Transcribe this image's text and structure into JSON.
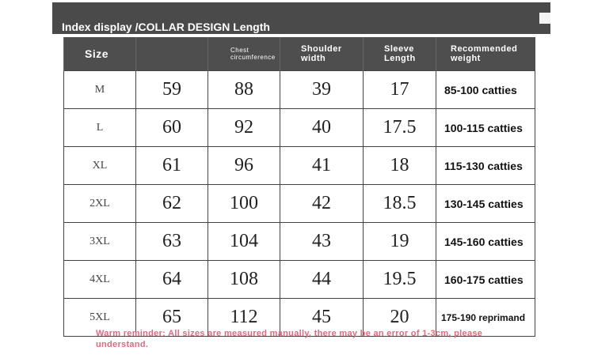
{
  "title": "Index display /COLLAR DESIGN Length",
  "headers": [
    "Size",
    "",
    "Chest circumference",
    "Shoulder width",
    "Sleeve Length",
    "Recommended weight"
  ],
  "rows": [
    [
      "M",
      "59",
      "88",
      "39",
      "17",
      "85-100 catties"
    ],
    [
      "L",
      "60",
      "92",
      "40",
      "17.5",
      "100-115 catties"
    ],
    [
      "XL",
      "61",
      "96",
      "41",
      "18",
      "115-130 catties"
    ],
    [
      "2XL",
      "62",
      "100",
      "42",
      "18.5",
      "130-145 catties"
    ],
    [
      "3XL",
      "63",
      "104",
      "43",
      "19",
      "145-160 catties"
    ],
    [
      "4XL",
      "64",
      "108",
      "44",
      "19.5",
      "160-175 catties"
    ],
    [
      "5XL",
      "65",
      "112",
      "45",
      "20",
      "175-190 reprimand"
    ]
  ],
  "note": "Warm reminder: All sizes are measured manually, there may be an error of 1-3cm, please understand.",
  "colors": {
    "header_bg": "#4e4e4e",
    "note": "#e06a7c"
  }
}
